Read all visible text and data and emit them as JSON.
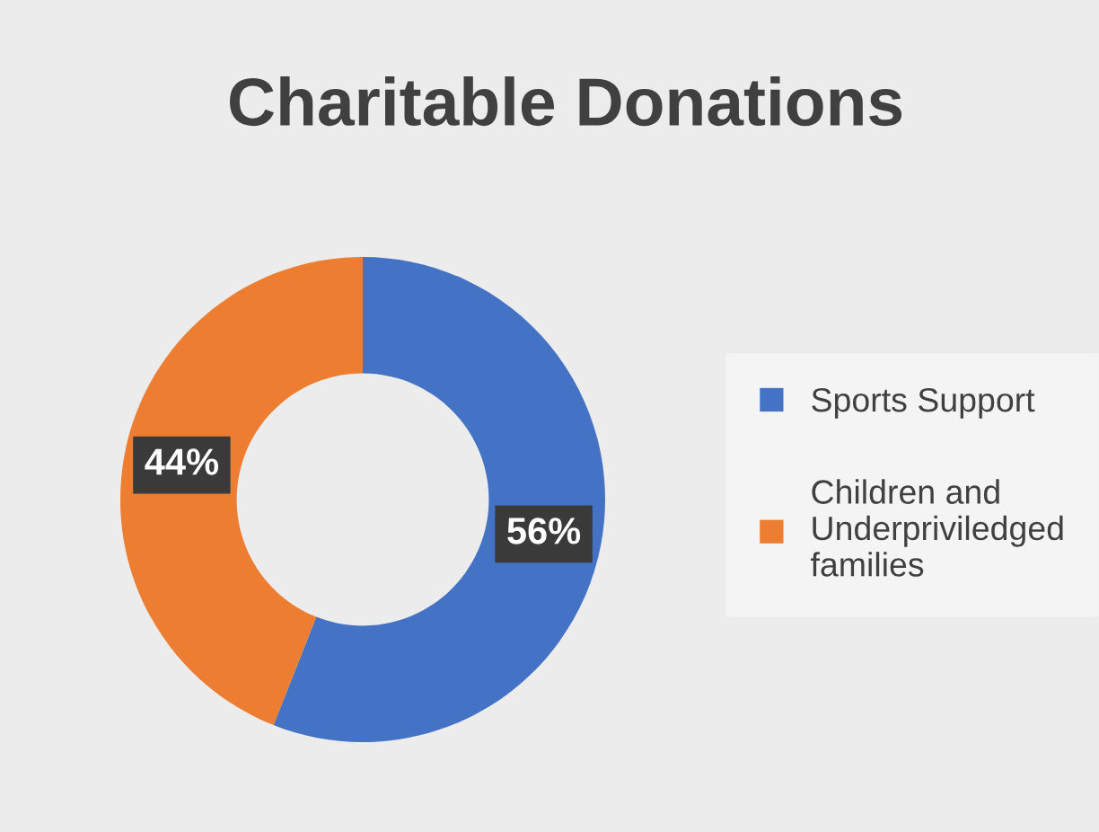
{
  "chart_data": {
    "type": "donut",
    "title": "Charitable Donations",
    "categories": [
      "Sports Support",
      "Children and Underpriviledged families"
    ],
    "values": [
      56,
      44
    ],
    "colors": [
      "#4472c4",
      "#ed7d31"
    ],
    "value_labels": [
      "56%",
      "44%"
    ],
    "legend": "right"
  }
}
